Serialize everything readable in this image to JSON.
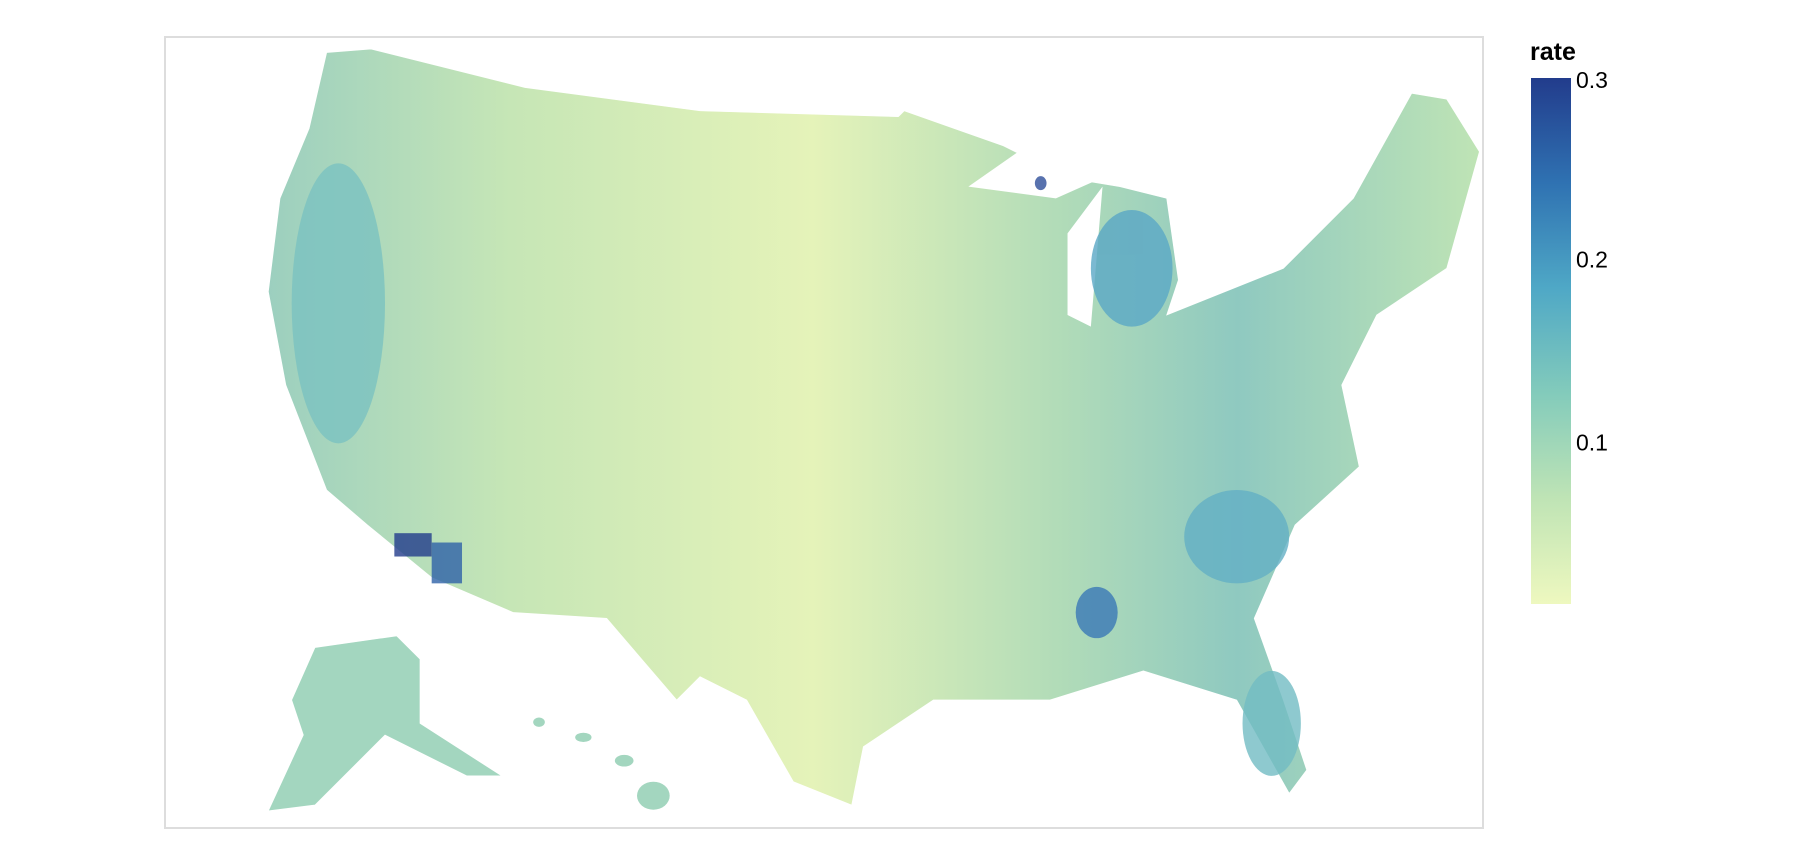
{
  "legend": {
    "title": "rate",
    "domain": [
      0.013,
      0.3
    ],
    "ticks": [
      0.1,
      0.2,
      0.3
    ],
    "colors": [
      "#eef8bf",
      "#bfe4b5",
      "#83cbbb",
      "#4fa8c6",
      "#2f72b2",
      "#223c8c"
    ]
  }
}
